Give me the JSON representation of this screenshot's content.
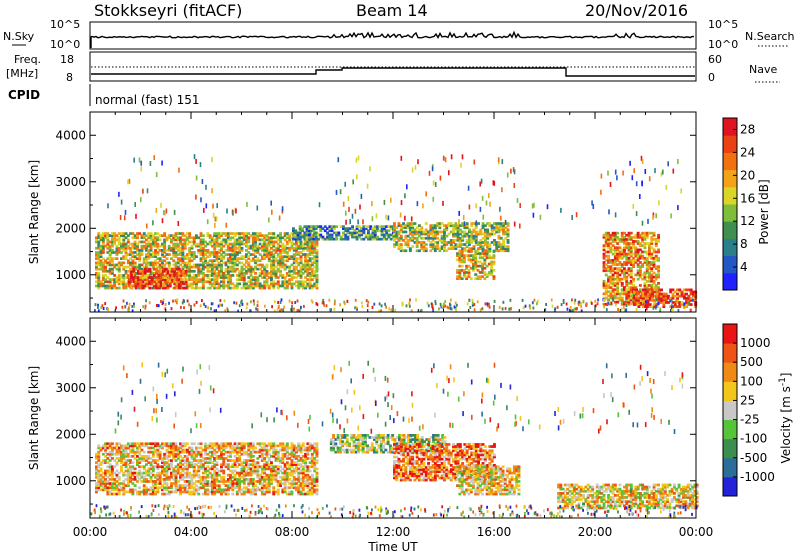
{
  "header": {
    "station": "Stokkseyri (fitACF)",
    "beam": "Beam 14",
    "date": "20/Nov/2016"
  },
  "top_panels": {
    "nsky_label": "N.Sky",
    "nsky_ticks": [
      "10^5",
      "10^0"
    ],
    "nsearch_label": "N.Search",
    "freq_label_1": "Freq.",
    "freq_label_2": "[MHz]",
    "freq_ticks": [
      "18",
      "8"
    ],
    "nave_label": "Nave",
    "nave_ticks": [
      "60",
      "0"
    ],
    "cpid_label": "CPID",
    "cpid_value": "normal (fast) 151"
  },
  "chart_data": [
    {
      "type": "heatmap",
      "name": "power",
      "xlabel": "Time UT",
      "ylabel": "Slant Range [km]",
      "xlim_hours": [
        0,
        24
      ],
      "ylim": [
        200,
        4500
      ],
      "x_ticks": [
        "00:00",
        "04:00",
        "08:00",
        "12:00",
        "16:00",
        "20:00",
        "00:00"
      ],
      "y_ticks": [
        1000,
        2000,
        3000,
        4000
      ],
      "colorbar": {
        "label": "Power [dB]",
        "ticks": [
          4,
          8,
          12,
          16,
          20,
          24,
          28
        ],
        "range": [
          0,
          30
        ],
        "colors": [
          "#1f22ff",
          "#2457c6",
          "#2a7f8a",
          "#3f8f4f",
          "#7fbe3b",
          "#d9d628",
          "#f3a31a",
          "#f07012",
          "#e84215",
          "#e0141e"
        ]
      },
      "regions": [
        {
          "t0": 0.2,
          "t1": 9.0,
          "r0": 700,
          "r1": 1900,
          "level": 0.55
        },
        {
          "t0": 1.5,
          "t1": 3.8,
          "r0": 700,
          "r1": 1150,
          "level": 0.85
        },
        {
          "t0": 8.0,
          "t1": 12.0,
          "r0": 1750,
          "r1": 2050,
          "level": 0.3
        },
        {
          "t0": 12.0,
          "t1": 16.5,
          "r0": 1500,
          "r1": 2100,
          "level": 0.5
        },
        {
          "t0": 14.5,
          "t1": 16.0,
          "r0": 900,
          "r1": 1500,
          "level": 0.6
        },
        {
          "t0": 20.3,
          "t1": 22.5,
          "r0": 350,
          "r1": 1900,
          "level": 0.7
        },
        {
          "t0": 21.5,
          "t1": 24.0,
          "r0": 300,
          "r1": 700,
          "level": 0.85
        }
      ]
    },
    {
      "type": "heatmap",
      "name": "velocity",
      "xlabel": "Time UT",
      "ylabel": "Slant Range [km]",
      "xlim_hours": [
        0,
        24
      ],
      "ylim": [
        200,
        4500
      ],
      "x_ticks": [
        "00:00",
        "04:00",
        "08:00",
        "12:00",
        "16:00",
        "20:00",
        "00:00"
      ],
      "y_ticks": [
        1000,
        2000,
        3000,
        4000
      ],
      "colorbar": {
        "label": "Velocity [m s-1]",
        "ticks": [
          "1000",
          "500",
          "100",
          "25",
          "-25",
          "-100",
          "-500",
          "-1000"
        ],
        "colors": [
          "#2323d8",
          "#2b6e9a",
          "#3c8e4f",
          "#56c43a",
          "#c8c8c8",
          "#f2c61a",
          "#f08a15",
          "#ee5514",
          "#e81514"
        ]
      },
      "regions": [
        {
          "t0": 0.2,
          "t1": 9.0,
          "r0": 700,
          "r1": 1800,
          "level": 0.65
        },
        {
          "t0": 9.5,
          "t1": 14.0,
          "r0": 1600,
          "r1": 2000,
          "level": 0.45
        },
        {
          "t0": 12.0,
          "t1": 16.0,
          "r0": 1000,
          "r1": 1800,
          "level": 0.75
        },
        {
          "t0": 14.5,
          "t1": 17.0,
          "r0": 700,
          "r1": 1300,
          "level": 0.6
        },
        {
          "t0": 18.5,
          "t1": 24.0,
          "r0": 400,
          "r1": 900,
          "level": 0.6
        }
      ]
    }
  ]
}
